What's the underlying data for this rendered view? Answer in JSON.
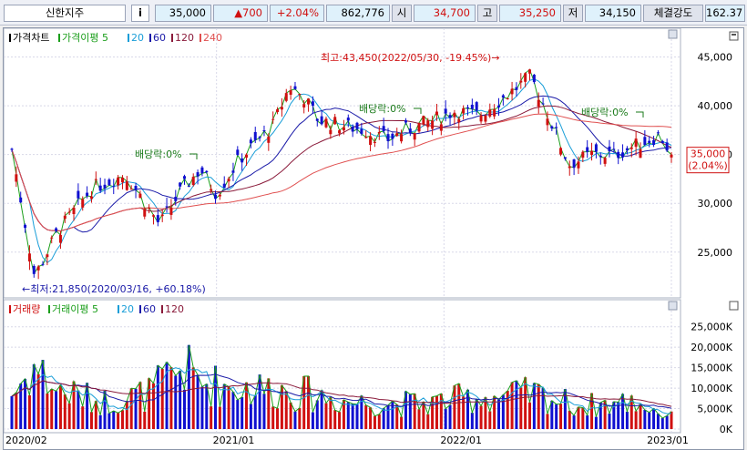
{
  "quote": {
    "name": "신한지주",
    "info": "i",
    "price": "35,000",
    "change": "▲700",
    "change_pct": "+2.04%",
    "volume": "862,776",
    "open_label": "시",
    "open": "34,700",
    "high_label": "고",
    "high": "35,250",
    "low_label": "저",
    "low": "34,150",
    "strength_label": "체결강도",
    "strength": "162.37"
  },
  "price_panel": {
    "legend": [
      {
        "label": "가격차트",
        "color": "#000000"
      },
      {
        "label": "가격이평 5",
        "color": "#1a9e1a"
      },
      {
        "label": "20",
        "color": "#1a9ed8"
      },
      {
        "label": "60",
        "color": "#1a1aa8"
      },
      {
        "label": "120",
        "color": "#8a1a3a"
      },
      {
        "label": "240",
        "color": "#e05050"
      }
    ],
    "high_annotation": "최고:43,450(2022/05/30, -19.45%)→",
    "low_annotation": "←최저:21,850(2020/03/16, +60.18%)",
    "dividend_annotations": [
      "배당락:0%",
      "배당락:0%",
      "배당락:0%"
    ],
    "yaxis": {
      "ticks": [
        25000,
        30000,
        35000,
        40000,
        45000
      ],
      "tick_labels": [
        "25,000",
        "30,000",
        "35,000",
        "40,000",
        "45,000"
      ],
      "range": [
        20500,
        47200
      ]
    },
    "current_price_label": "35,000",
    "current_pct_label": "(2.04%)"
  },
  "volume_panel": {
    "legend": [
      {
        "label": "거래량",
        "color": "#d01010"
      },
      {
        "label": "거래이평 5",
        "color": "#1a9e1a"
      },
      {
        "label": "20",
        "color": "#1a9ed8"
      },
      {
        "label": "60",
        "color": "#1a1aa8"
      },
      {
        "label": "120",
        "color": "#8a1a3a"
      }
    ],
    "yaxis": {
      "ticks": [
        0,
        5000,
        10000,
        15000,
        20000,
        25000
      ],
      "tick_labels": [
        "0K",
        "5,000K",
        "10,000K",
        "15,000K",
        "20,000K",
        "25,000K"
      ],
      "range": [
        0,
        28500
      ]
    }
  },
  "xaxis": {
    "labels": [
      "2020/02",
      "2021/01",
      "2022/01",
      "2023/01"
    ]
  },
  "colors": {
    "up": "#d01010",
    "down": "#1010d0",
    "grid": "#d8d8e8",
    "current_tag_bg": "#ffffff"
  },
  "chart_data": {
    "type": "line",
    "series": [
      {
        "name": "가격차트",
        "anchors": [
          [
            2020.1,
            35500
          ],
          [
            2020.2,
            22500
          ],
          [
            2020.3,
            27000
          ],
          [
            2020.45,
            31500
          ],
          [
            2020.6,
            33000
          ],
          [
            2020.75,
            27800
          ],
          [
            2020.85,
            31500
          ],
          [
            2020.93,
            33500
          ],
          [
            2021.0,
            31000
          ],
          [
            2021.1,
            34500
          ],
          [
            2021.25,
            38000
          ],
          [
            2021.32,
            42000
          ],
          [
            2021.38,
            41000
          ],
          [
            2021.45,
            38500
          ],
          [
            2021.55,
            38000
          ],
          [
            2021.65,
            37500
          ],
          [
            2021.75,
            36500
          ],
          [
            2021.83,
            37500
          ],
          [
            2021.95,
            38500
          ],
          [
            2022.05,
            39500
          ],
          [
            2022.15,
            39000
          ],
          [
            2022.3,
            41500
          ],
          [
            2022.38,
            43000
          ],
          [
            2022.45,
            39500
          ],
          [
            2022.55,
            34000
          ],
          [
            2022.65,
            35000
          ],
          [
            2022.75,
            35000
          ],
          [
            2022.85,
            36000
          ],
          [
            2022.95,
            37000
          ],
          [
            2023.0,
            35000
          ]
        ]
      },
      {
        "name": "거래량",
        "anchors": [
          [
            2020.1,
            9000
          ],
          [
            2020.2,
            16000
          ],
          [
            2020.3,
            10000
          ],
          [
            2020.5,
            7000
          ],
          [
            2020.7,
            9000
          ],
          [
            2020.85,
            16000
          ],
          [
            2020.93,
            12000
          ],
          [
            2021.05,
            11000
          ],
          [
            2021.3,
            10000
          ],
          [
            2021.6,
            7000
          ],
          [
            2021.9,
            6500
          ],
          [
            2022.1,
            8000
          ],
          [
            2022.4,
            9000
          ],
          [
            2022.6,
            6000
          ],
          [
            2022.85,
            7000
          ],
          [
            2023.0,
            3000
          ]
        ]
      }
    ]
  }
}
